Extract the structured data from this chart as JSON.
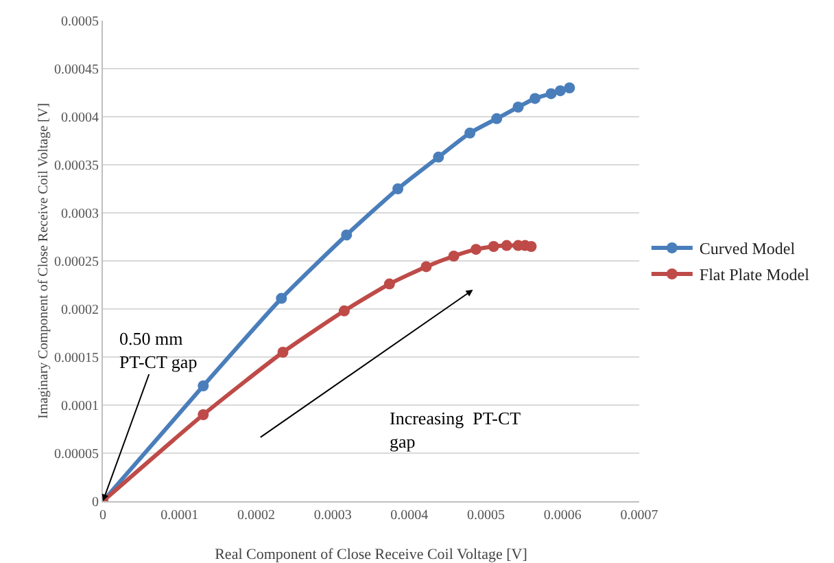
{
  "chart_data": {
    "type": "line",
    "xlabel": "Real Component of Close Receive Coil Voltage [V]",
    "ylabel": "Imaginary Component of Close Receive Coil Voltage [V]",
    "xlim": [
      0,
      0.0007
    ],
    "xticks": [
      0,
      0.0001,
      0.0002,
      0.0003,
      0.0004,
      0.0005,
      0.0006,
      0.0007
    ],
    "ylim": [
      0,
      0.0005
    ],
    "yticks": [
      0,
      {
        "value": 5e-05,
        "label": "0.00005"
      },
      0.0001,
      0.00015,
      0.0002,
      0.00025,
      0.0003,
      0.00035,
      0.0004,
      0.00045,
      0.0005
    ],
    "grid": "y",
    "legend": "right",
    "marker": "circle",
    "line_style": "solid",
    "series": [
      {
        "name": "Curved Model",
        "color": "#4a7ebb",
        "x": [
          0,
          0.000131,
          0.000233,
          0.000318,
          0.000385,
          0.000438,
          0.000479,
          0.000514,
          0.000542,
          0.000564,
          0.000585,
          0.000597,
          0.000609
        ],
        "values": [
          0,
          0.00012,
          0.000211,
          0.000277,
          0.000325,
          0.000358,
          0.000383,
          0.000398,
          0.00041,
          0.000419,
          0.000424,
          0.000427,
          0.00043
        ]
      },
      {
        "name": "Flat Plate Model",
        "color": "#be4b48",
        "x": [
          0,
          0.000131,
          0.000235,
          0.000315,
          0.000374,
          0.000422,
          0.000458,
          0.000487,
          0.00051,
          0.000527,
          0.000542,
          0.000551,
          0.000559
        ],
        "values": [
          0,
          9e-05,
          0.000155,
          0.000198,
          0.000226,
          0.000244,
          0.000255,
          0.000262,
          0.000265,
          0.000266,
          0.000266,
          0.000266,
          0.000265
        ]
      }
    ],
    "annotations": [
      {
        "text": "0.50 mm\nPT-CT gap",
        "x": 0,
        "y": 0
      },
      "Increasing  PT-CT\ngap"
    ]
  }
}
